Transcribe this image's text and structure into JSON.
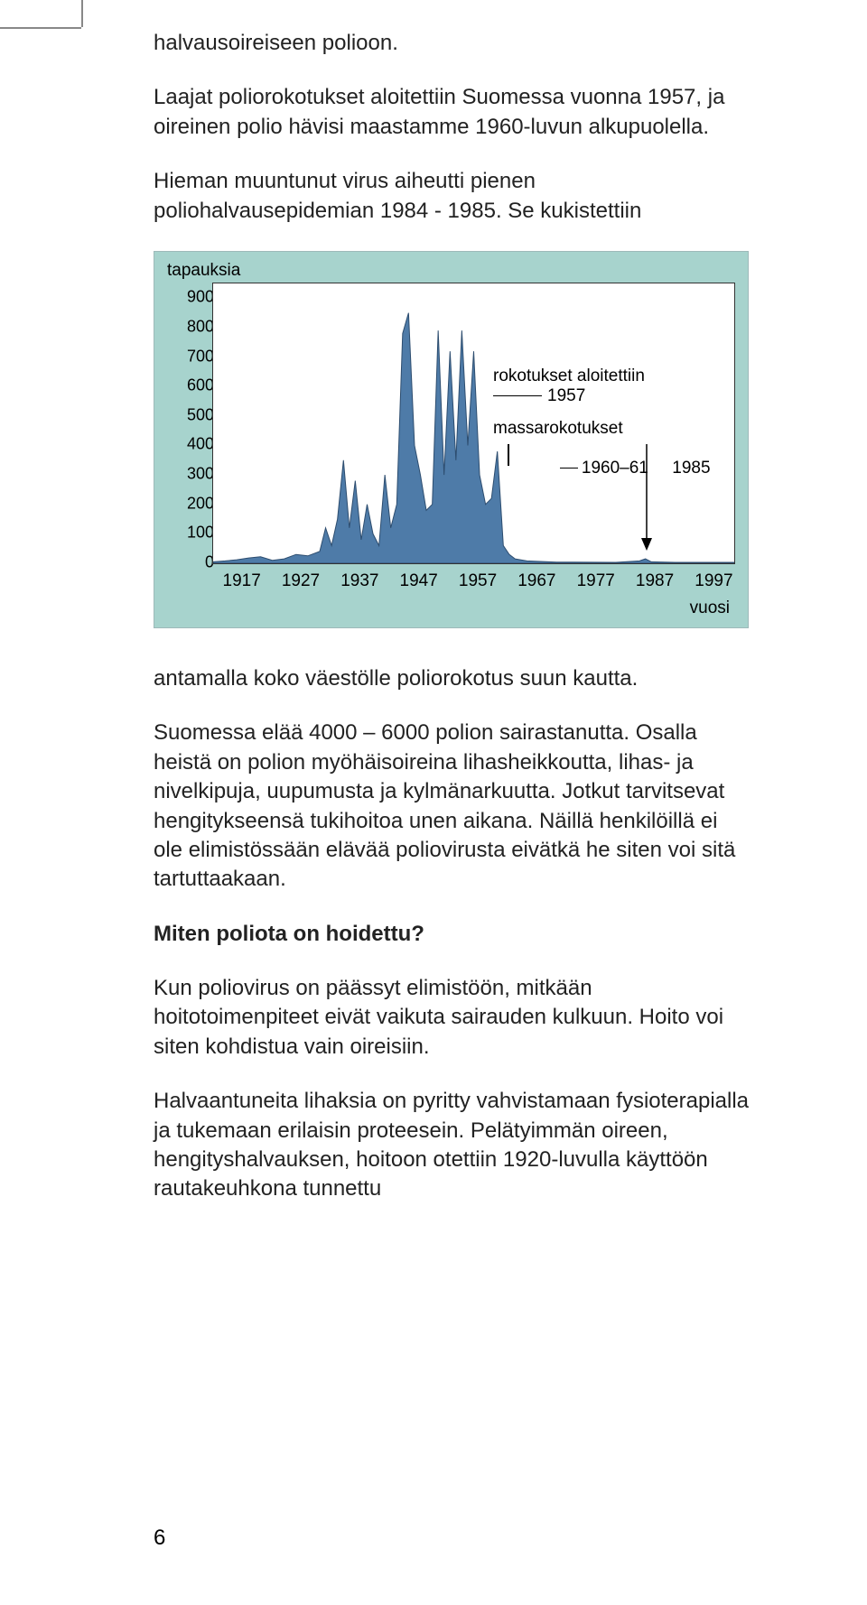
{
  "paragraphs": {
    "p1": "halvausoireiseen polioon.",
    "p2": "Laajat poliorokotukset aloitettiin Suomessa vuonna 1957, ja oireinen polio hävisi maastamme 1960-luvun alkupuolella.",
    "p3": "Hieman muuntunut virus aiheutti pienen poliohalvausepidemian 1984 - 1985. Se kukistettiin",
    "p4": "antamalla koko väestölle poliorokotus suun kautta.",
    "p5": "Suomessa elää 4000 – 6000 polion sairastanutta. Osalla heistä on polion myöhäisoireina lihasheikkoutta, lihas- ja nivelkipuja, uupumusta ja kylmänarkuutta. Jotkut tarvitsevat hengitykseensä tukihoitoa unen aikana. Näillä henkilöillä ei ole elimistössään elävää poliovirusta eivätkä he siten voi sitä tartuttaakaan.",
    "h1": "Miten poliota on hoidettu?",
    "p6": "Kun poliovirus on päässyt elimistöön, mitkään hoitotoimenpiteet eivät vaikuta sairauden kulkuun. Hoito voi siten kohdistua vain oireisiin.",
    "p7": "Halvaantuneita lihaksia on pyritty vahvistamaan fysioterapialla ja tukemaan erilaisin proteesein. Pelätyimmän oireen, hengityshalvauksen, hoitoon otettiin 1920-luvulla käyttöön rautakeuhkona tunnettu"
  },
  "chart": {
    "type": "area",
    "y_title": "tapauksia",
    "x_title": "vuosi",
    "y_ticks": [
      0,
      100,
      200,
      300,
      400,
      500,
      600,
      700,
      800,
      900
    ],
    "x_ticks": [
      1917,
      1927,
      1937,
      1947,
      1957,
      1967,
      1977,
      1987,
      1997
    ],
    "ylim": [
      0,
      950
    ],
    "xlim": [
      1912,
      2000
    ],
    "fill_color": "#4e7ba8",
    "bg_color": "#a7d3cd",
    "plot_bg": "#ffffff",
    "axis_color": "#222222",
    "text_color": "#000000",
    "font_size": 19,
    "annotations": {
      "a1_line1": "rokotukset aloitettiin",
      "a1_line2": "1957",
      "a2_line1": "massarokotukset",
      "a2_line2": "1960–61     1985"
    },
    "series": [
      {
        "x": 1912,
        "y": 5
      },
      {
        "x": 1914,
        "y": 8
      },
      {
        "x": 1916,
        "y": 12
      },
      {
        "x": 1918,
        "y": 18
      },
      {
        "x": 1920,
        "y": 22
      },
      {
        "x": 1922,
        "y": 10
      },
      {
        "x": 1924,
        "y": 15
      },
      {
        "x": 1926,
        "y": 30
      },
      {
        "x": 1928,
        "y": 25
      },
      {
        "x": 1930,
        "y": 40
      },
      {
        "x": 1931,
        "y": 120
      },
      {
        "x": 1932,
        "y": 60
      },
      {
        "x": 1933,
        "y": 150
      },
      {
        "x": 1934,
        "y": 350
      },
      {
        "x": 1935,
        "y": 120
      },
      {
        "x": 1936,
        "y": 280
      },
      {
        "x": 1937,
        "y": 80
      },
      {
        "x": 1938,
        "y": 200
      },
      {
        "x": 1939,
        "y": 100
      },
      {
        "x": 1940,
        "y": 60
      },
      {
        "x": 1941,
        "y": 300
      },
      {
        "x": 1942,
        "y": 120
      },
      {
        "x": 1943,
        "y": 200
      },
      {
        "x": 1944,
        "y": 780
      },
      {
        "x": 1945,
        "y": 850
      },
      {
        "x": 1946,
        "y": 400
      },
      {
        "x": 1947,
        "y": 300
      },
      {
        "x": 1948,
        "y": 180
      },
      {
        "x": 1949,
        "y": 200
      },
      {
        "x": 1950,
        "y": 790
      },
      {
        "x": 1951,
        "y": 300
      },
      {
        "x": 1952,
        "y": 720
      },
      {
        "x": 1953,
        "y": 350
      },
      {
        "x": 1954,
        "y": 790
      },
      {
        "x": 1955,
        "y": 400
      },
      {
        "x": 1956,
        "y": 720
      },
      {
        "x": 1957,
        "y": 300
      },
      {
        "x": 1958,
        "y": 200
      },
      {
        "x": 1959,
        "y": 220
      },
      {
        "x": 1960,
        "y": 380
      },
      {
        "x": 1961,
        "y": 60
      },
      {
        "x": 1962,
        "y": 30
      },
      {
        "x": 1963,
        "y": 15
      },
      {
        "x": 1965,
        "y": 8
      },
      {
        "x": 1970,
        "y": 4
      },
      {
        "x": 1980,
        "y": 3
      },
      {
        "x": 1984,
        "y": 8
      },
      {
        "x": 1985,
        "y": 15
      },
      {
        "x": 1986,
        "y": 5
      },
      {
        "x": 1990,
        "y": 3
      },
      {
        "x": 1997,
        "y": 3
      },
      {
        "x": 2000,
        "y": 3
      }
    ]
  },
  "page_number": "6"
}
